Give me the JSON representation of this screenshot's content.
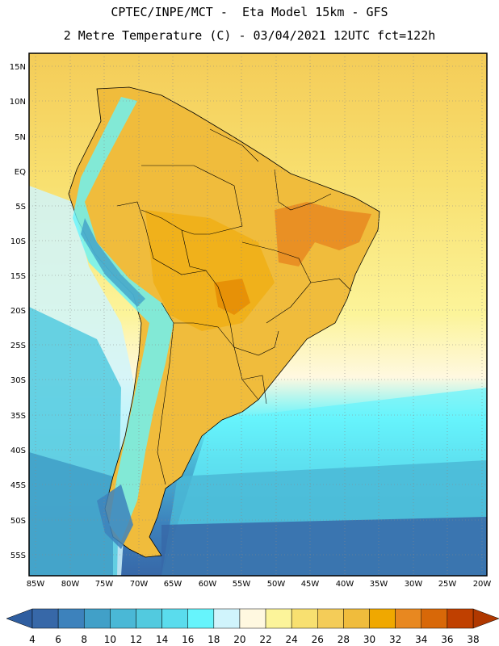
{
  "header": {
    "line1": "CPTEC/INPE/MCT -  Eta Model 15km - GFS",
    "line2": "2 Metre Temperature (C) - 03/04/2021 12UTC fct=122h"
  },
  "map": {
    "lat_labels": [
      "15N",
      "10N",
      "5N",
      "EQ",
      "5S",
      "10S",
      "15S",
      "20S",
      "25S",
      "30S",
      "35S",
      "40S",
      "45S",
      "50S",
      "55S"
    ],
    "lon_labels": [
      "85W",
      "80W",
      "75W",
      "70W",
      "65W",
      "60W",
      "55W",
      "50W",
      "45W",
      "40W",
      "35W",
      "30W",
      "25W",
      "20W"
    ]
  },
  "colorbar": {
    "values": [
      "4",
      "6",
      "8",
      "10",
      "12",
      "14",
      "16",
      "18",
      "20",
      "22",
      "24",
      "26",
      "28",
      "30",
      "32",
      "34",
      "36",
      "38"
    ],
    "colors": [
      "#3768a8",
      "#3d82bc",
      "#41a0c8",
      "#4ab8d6",
      "#52cadf",
      "#5adced",
      "#66f4fc",
      "#d0f4fc",
      "#fff8e0",
      "#fcf49a",
      "#f8e070",
      "#f4cc58",
      "#f0bc3c",
      "#f0a800",
      "#e88820",
      "#d86808",
      "#c04000"
    ],
    "low_color": "#2f5ea0",
    "high_color": "#b03800"
  }
}
